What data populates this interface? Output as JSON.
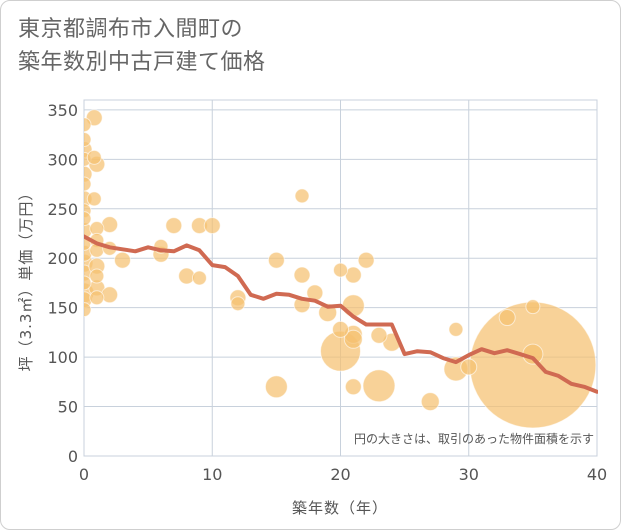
{
  "title_lines": [
    "東京都調布市入間町の",
    "築年数別中古戸建て価格"
  ],
  "chart_data": {
    "type": "scatter",
    "title": "東京都調布市入間町の築年数別中古戸建て価格",
    "xlabel": "築年数（年）",
    "ylabel": "坪（3.3㎡）単価（万円）",
    "xlim": [
      0,
      40
    ],
    "ylim": [
      0,
      360
    ],
    "xticks": [
      0,
      10,
      20,
      30,
      40
    ],
    "yticks": [
      0,
      50,
      100,
      150,
      200,
      250,
      300,
      350
    ],
    "grid": true,
    "note": "円の大きさは、取引のあった物件面積を示す",
    "colors": {
      "bubble": "#f5c070",
      "line": "#d06a52"
    },
    "series": [
      {
        "kind": "bubble",
        "points": [
          {
            "x": 0,
            "y": 335,
            "s": 7
          },
          {
            "x": 0,
            "y": 320,
            "s": 7
          },
          {
            "x": 0,
            "y": 310,
            "s": 8
          },
          {
            "x": 0,
            "y": 300,
            "s": 7
          },
          {
            "x": 0,
            "y": 285,
            "s": 8
          },
          {
            "x": 0,
            "y": 275,
            "s": 7
          },
          {
            "x": 0,
            "y": 260,
            "s": 8
          },
          {
            "x": 0,
            "y": 248,
            "s": 7
          },
          {
            "x": 0,
            "y": 240,
            "s": 7
          },
          {
            "x": 0,
            "y": 228,
            "s": 8
          },
          {
            "x": 0,
            "y": 215,
            "s": 7
          },
          {
            "x": 0,
            "y": 205,
            "s": 8
          },
          {
            "x": 0,
            "y": 195,
            "s": 9
          },
          {
            "x": 0,
            "y": 185,
            "s": 8
          },
          {
            "x": 0,
            "y": 175,
            "s": 7
          },
          {
            "x": 0,
            "y": 165,
            "s": 10
          },
          {
            "x": 0,
            "y": 158,
            "s": 8
          },
          {
            "x": 0,
            "y": 148,
            "s": 7
          },
          {
            "x": 0.8,
            "y": 342,
            "s": 8
          },
          {
            "x": 0.8,
            "y": 302,
            "s": 7
          },
          {
            "x": 1,
            "y": 295,
            "s": 8
          },
          {
            "x": 0.8,
            "y": 260,
            "s": 7
          },
          {
            "x": 1,
            "y": 230,
            "s": 7
          },
          {
            "x": 1,
            "y": 218,
            "s": 7
          },
          {
            "x": 1,
            "y": 208,
            "s": 7
          },
          {
            "x": 1,
            "y": 192,
            "s": 8
          },
          {
            "x": 1,
            "y": 182,
            "s": 7
          },
          {
            "x": 1,
            "y": 170,
            "s": 8
          },
          {
            "x": 1,
            "y": 160,
            "s": 7
          },
          {
            "x": 2,
            "y": 234,
            "s": 8
          },
          {
            "x": 2,
            "y": 210,
            "s": 7
          },
          {
            "x": 2,
            "y": 163,
            "s": 8
          },
          {
            "x": 3,
            "y": 198,
            "s": 8
          },
          {
            "x": 6,
            "y": 212,
            "s": 7
          },
          {
            "x": 6,
            "y": 204,
            "s": 8
          },
          {
            "x": 7,
            "y": 233,
            "s": 8
          },
          {
            "x": 8,
            "y": 182,
            "s": 8
          },
          {
            "x": 9,
            "y": 233,
            "s": 8
          },
          {
            "x": 9,
            "y": 180,
            "s": 7
          },
          {
            "x": 10,
            "y": 233,
            "s": 8
          },
          {
            "x": 12,
            "y": 160,
            "s": 8
          },
          {
            "x": 12,
            "y": 154,
            "s": 7
          },
          {
            "x": 15,
            "y": 198,
            "s": 8
          },
          {
            "x": 15,
            "y": 70,
            "s": 11
          },
          {
            "x": 17,
            "y": 263,
            "s": 7
          },
          {
            "x": 17,
            "y": 183,
            "s": 8
          },
          {
            "x": 17,
            "y": 153,
            "s": 8
          },
          {
            "x": 18,
            "y": 165,
            "s": 8
          },
          {
            "x": 19,
            "y": 145,
            "s": 9
          },
          {
            "x": 20,
            "y": 188,
            "s": 7
          },
          {
            "x": 20,
            "y": 128,
            "s": 8
          },
          {
            "x": 20,
            "y": 106,
            "s": 20
          },
          {
            "x": 21,
            "y": 183,
            "s": 8
          },
          {
            "x": 21,
            "y": 152,
            "s": 11
          },
          {
            "x": 21,
            "y": 123,
            "s": 9
          },
          {
            "x": 21,
            "y": 118,
            "s": 9
          },
          {
            "x": 21,
            "y": 70,
            "s": 8
          },
          {
            "x": 22,
            "y": 198,
            "s": 8
          },
          {
            "x": 23,
            "y": 122,
            "s": 8
          },
          {
            "x": 23,
            "y": 71,
            "s": 16
          },
          {
            "x": 24,
            "y": 115,
            "s": 9
          },
          {
            "x": 27,
            "y": 55,
            "s": 9
          },
          {
            "x": 29,
            "y": 128,
            "s": 7
          },
          {
            "x": 29,
            "y": 88,
            "s": 12
          },
          {
            "x": 30,
            "y": 90,
            "s": 8
          },
          {
            "x": 33,
            "y": 140,
            "s": 8
          },
          {
            "x": 35,
            "y": 151,
            "s": 7
          },
          {
            "x": 35,
            "y": 103,
            "s": 10
          },
          {
            "x": 35,
            "y": 92,
            "s": 63
          }
        ]
      },
      {
        "kind": "line",
        "x": [
          0,
          1,
          2,
          3,
          4,
          5,
          6,
          7,
          8,
          9,
          10,
          11,
          12,
          13,
          14,
          15,
          16,
          17,
          18,
          19,
          20,
          21,
          22,
          23,
          24,
          25,
          26,
          27,
          28,
          29,
          30,
          31,
          32,
          33,
          34,
          35,
          36,
          37,
          38,
          39,
          40
        ],
        "y": [
          222,
          215,
          211,
          209,
          207,
          211,
          208,
          207,
          213,
          208,
          193,
          191,
          182,
          163,
          159,
          164,
          163,
          159,
          157,
          151,
          152,
          141,
          133,
          133,
          133,
          103,
          106,
          105,
          99,
          95,
          102,
          108,
          104,
          107,
          103,
          99,
          85,
          81,
          73,
          70,
          65
        ]
      }
    ]
  }
}
